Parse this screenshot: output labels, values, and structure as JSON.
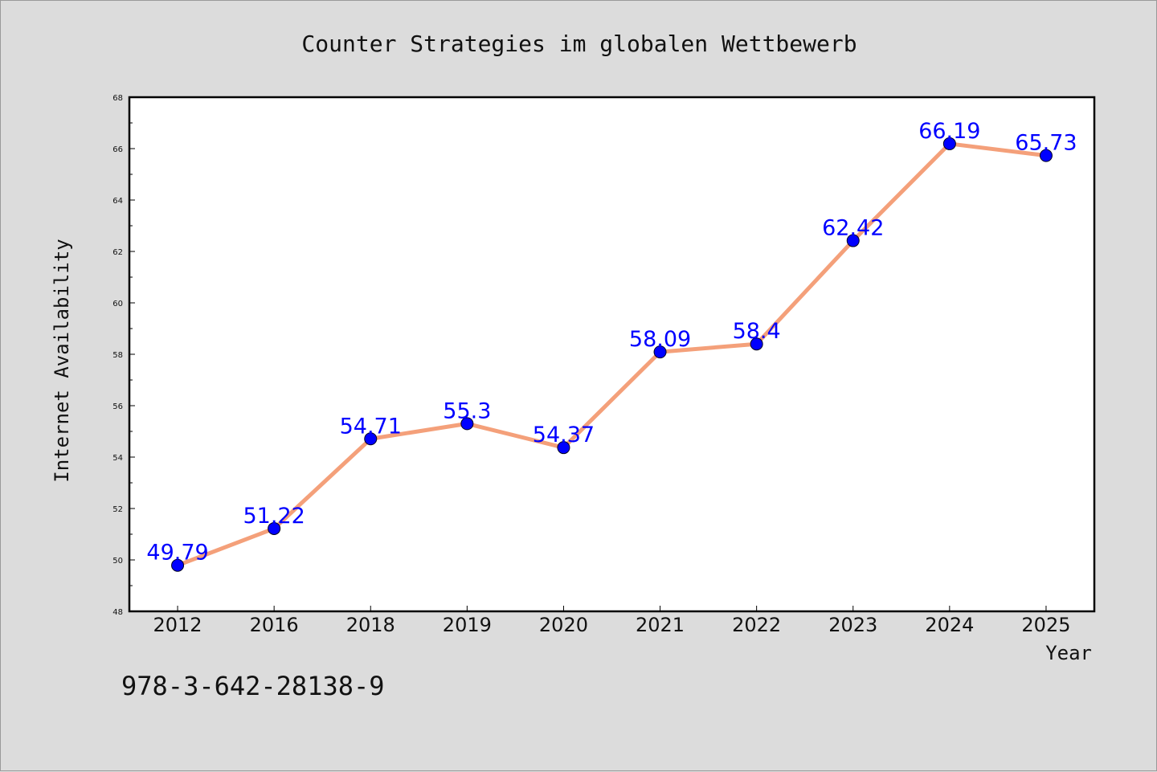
{
  "chart_data": {
    "type": "line",
    "title": "Counter Strategies im globalen Wettbewerb",
    "xlabel": "Year",
    "ylabel": "Internet Availability",
    "categories": [
      "2012",
      "2016",
      "2018",
      "2019",
      "2020",
      "2021",
      "2022",
      "2023",
      "2024",
      "2025"
    ],
    "series": [
      {
        "values": [
          49.79,
          51.22,
          54.71,
          55.3,
          54.37,
          58.09,
          58.4,
          62.42,
          66.19,
          65.73
        ],
        "labels": [
          "49.79",
          "51.22",
          "54.71",
          "55.3",
          "54.37",
          "58.09",
          "58.4",
          "62.42",
          "66.19",
          "65.73"
        ]
      }
    ],
    "ylim": [
      48,
      68
    ],
    "yticks": [
      48,
      50,
      52,
      54,
      56,
      58,
      60,
      62,
      64,
      66,
      68
    ],
    "grid": false,
    "legend": "none",
    "colors": {
      "line": "#f4a07a",
      "marker": "#0000ff",
      "data_label": "#0000ff",
      "background": "#dcdcdc",
      "plot_area": "#ffffff"
    }
  },
  "annotation": "978-3-642-28138-9"
}
